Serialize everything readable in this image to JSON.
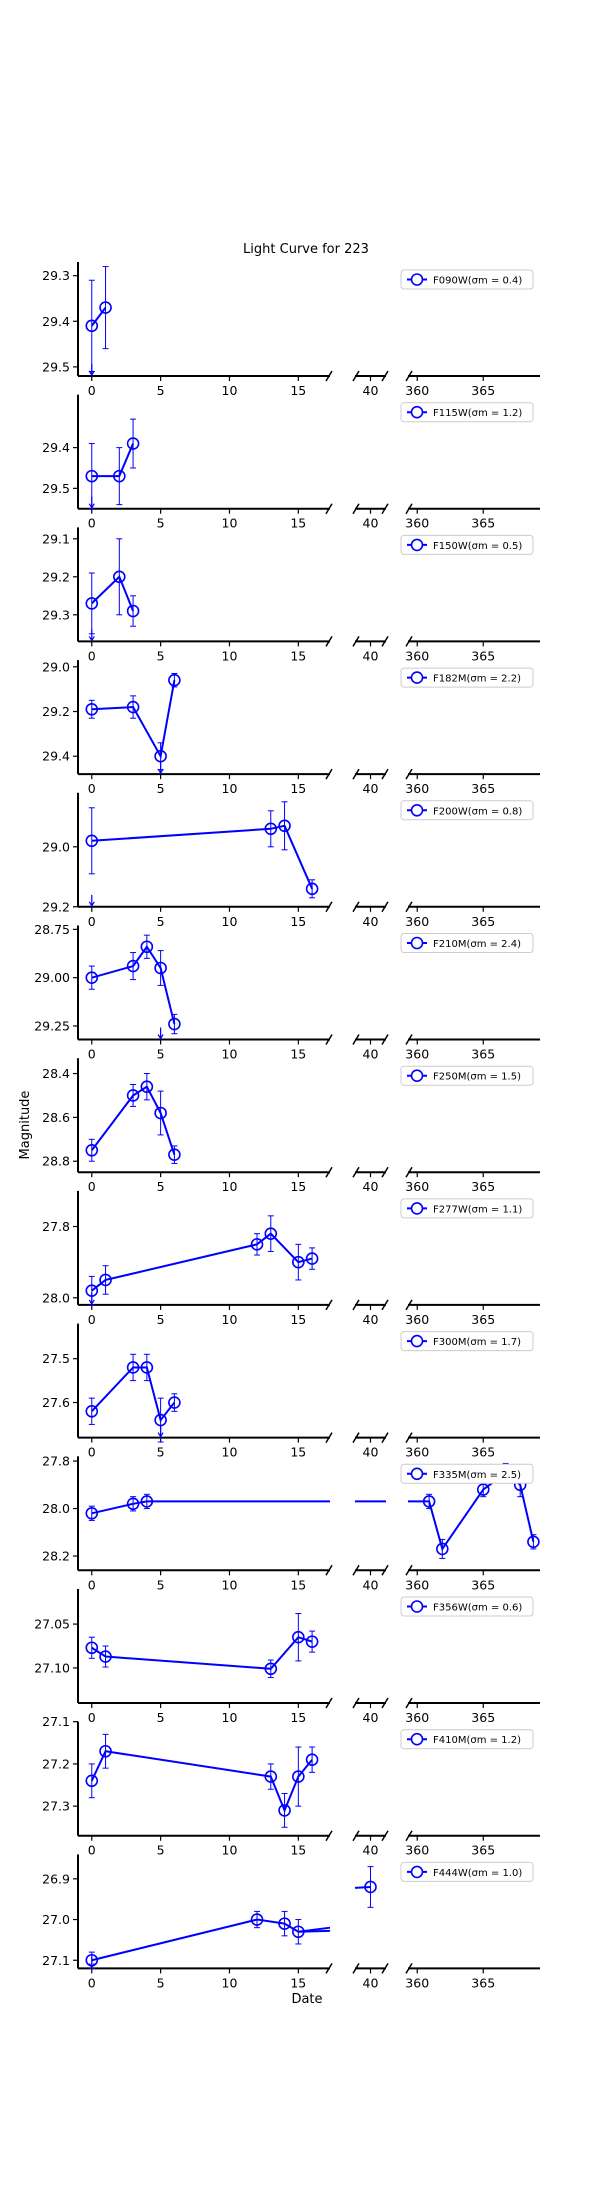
{
  "title": "Light Curve for 223",
  "xlabel": "Date",
  "ylabel": "Magnitude",
  "series_color": "#0000ff",
  "x_segments": [
    {
      "xlim": [
        -1,
        17.3
      ],
      "ticks": [
        0,
        5,
        10,
        15
      ]
    },
    {
      "xlim": [
        39.3,
        40.7
      ],
      "ticks": [
        40
      ]
    },
    {
      "xlim": [
        359.3,
        369.3
      ],
      "ticks": [
        360,
        365
      ]
    }
  ],
  "chart_data": [
    {
      "type": "line",
      "filter": "F090W",
      "legend": "F090W(σm = 0.4)",
      "ylim": [
        29.52,
        29.27
      ],
      "yticks": [
        "29.3",
        "29.4",
        "29.5"
      ],
      "yvals": [
        29.3,
        29.4,
        29.5
      ],
      "points": [
        {
          "x": 0,
          "y": 29.41,
          "err": 0.1
        },
        {
          "x": 1,
          "y": 29.37,
          "err": 0.09
        }
      ],
      "upper_limit_x": [
        0
      ]
    },
    {
      "type": "line",
      "filter": "F115W",
      "legend": "F115W(σm = 1.2)",
      "ylim": [
        29.55,
        29.27
      ],
      "yticks": [
        "29.4",
        "29.5"
      ],
      "yvals": [
        29.4,
        29.5
      ],
      "points": [
        {
          "x": 0,
          "y": 29.47,
          "err": 0.08
        },
        {
          "x": 2,
          "y": 29.47,
          "err": 0.07
        },
        {
          "x": 3,
          "y": 29.39,
          "err": 0.06
        }
      ],
      "upper_limit_x": [
        0
      ]
    },
    {
      "type": "line",
      "filter": "F150W",
      "legend": "F150W(σm = 0.5)",
      "ylim": [
        29.37,
        29.07
      ],
      "yticks": [
        "29.1",
        "29.2",
        "29.3"
      ],
      "yvals": [
        29.1,
        29.2,
        29.3
      ],
      "points": [
        {
          "x": 0,
          "y": 29.27,
          "err": 0.08
        },
        {
          "x": 2,
          "y": 29.2,
          "err": 0.1
        },
        {
          "x": 3,
          "y": 29.29,
          "err": 0.04
        }
      ],
      "upper_limit_x": [
        0
      ]
    },
    {
      "type": "line",
      "filter": "F182M",
      "legend": "F182M(σm = 2.2)",
      "ylim": [
        29.48,
        28.97
      ],
      "yticks": [
        "29.0",
        "29.2",
        "29.4"
      ],
      "yvals": [
        29.0,
        29.2,
        29.4
      ],
      "points": [
        {
          "x": 0,
          "y": 29.19,
          "err": 0.04
        },
        {
          "x": 3,
          "y": 29.18,
          "err": 0.05
        },
        {
          "x": 5,
          "y": 29.4,
          "err": 0.06
        },
        {
          "x": 6,
          "y": 29.06,
          "err": 0.03
        }
      ],
      "upper_limit_x": [
        5
      ]
    },
    {
      "type": "line",
      "filter": "F200W",
      "legend": "F200W(σm = 0.8)",
      "ylim": [
        29.2,
        28.82
      ],
      "yticks": [
        "29.0",
        "29.2"
      ],
      "yvals": [
        29.0,
        29.2
      ],
      "points": [
        {
          "x": 0,
          "y": 28.98,
          "err": 0.11
        },
        {
          "x": 13,
          "y": 28.94,
          "err": 0.06
        },
        {
          "x": 14,
          "y": 28.93,
          "err": 0.08
        },
        {
          "x": 16,
          "y": 29.14,
          "err": 0.03
        }
      ],
      "upper_limit_x": [
        0
      ]
    },
    {
      "type": "line",
      "filter": "F210M",
      "legend": "F210M(σm = 2.4)",
      "ylim": [
        29.32,
        28.73
      ],
      "yticks": [
        "28.75",
        "29.00",
        "29.25"
      ],
      "yvals": [
        28.75,
        29.0,
        29.25
      ],
      "points": [
        {
          "x": 0,
          "y": 29.0,
          "err": 0.06
        },
        {
          "x": 3,
          "y": 28.94,
          "err": 0.07
        },
        {
          "x": 4,
          "y": 28.84,
          "err": 0.06
        },
        {
          "x": 5,
          "y": 28.95,
          "err": 0.09
        },
        {
          "x": 6,
          "y": 29.24,
          "err": 0.05
        }
      ],
      "upper_limit_x": [
        5
      ]
    },
    {
      "type": "line",
      "filter": "F250M",
      "legend": "F250M(σm = 1.5)",
      "ylim": [
        28.85,
        28.33
      ],
      "yticks": [
        "28.4",
        "28.6",
        "28.8"
      ],
      "yvals": [
        28.4,
        28.6,
        28.8
      ],
      "points": [
        {
          "x": 0,
          "y": 28.75,
          "err": 0.05
        },
        {
          "x": 3,
          "y": 28.5,
          "err": 0.05
        },
        {
          "x": 4,
          "y": 28.46,
          "err": 0.06
        },
        {
          "x": 5,
          "y": 28.58,
          "err": 0.1
        },
        {
          "x": 6,
          "y": 28.77,
          "err": 0.04
        }
      ],
      "upper_limit_x": []
    },
    {
      "type": "line",
      "filter": "F277W",
      "legend": "F277W(σm = 1.1)",
      "ylim": [
        28.02,
        27.7
      ],
      "yticks": [
        "27.8",
        "28.0"
      ],
      "yvals": [
        27.8,
        28.0
      ],
      "points": [
        {
          "x": 0,
          "y": 27.98,
          "err": 0.04
        },
        {
          "x": 1,
          "y": 27.95,
          "err": 0.04
        },
        {
          "x": 12,
          "y": 27.85,
          "err": 0.03
        },
        {
          "x": 13,
          "y": 27.82,
          "err": 0.05
        },
        {
          "x": 15,
          "y": 27.9,
          "err": 0.05
        },
        {
          "x": 16,
          "y": 27.89,
          "err": 0.03
        }
      ],
      "upper_limit_x": [
        0
      ]
    },
    {
      "type": "line",
      "filter": "F300M",
      "legend": "F300M(σm = 1.7)",
      "ylim": [
        27.68,
        27.42
      ],
      "yticks": [
        "27.5",
        "27.6"
      ],
      "yvals": [
        27.5,
        27.6
      ],
      "points": [
        {
          "x": 0,
          "y": 27.62,
          "err": 0.03
        },
        {
          "x": 3,
          "y": 27.52,
          "err": 0.03
        },
        {
          "x": 4,
          "y": 27.52,
          "err": 0.03
        },
        {
          "x": 5,
          "y": 27.64,
          "err": 0.05
        },
        {
          "x": 6,
          "y": 27.6,
          "err": 0.02
        }
      ],
      "upper_limit_x": [
        5
      ]
    },
    {
      "type": "line",
      "filter": "F335M",
      "legend": "F335M(σm = 2.5)",
      "ylim": [
        28.26,
        27.78
      ],
      "yticks": [
        "27.8",
        "28.0",
        "28.2"
      ],
      "yvals": [
        27.8,
        28.0,
        28.2
      ],
      "points": [
        {
          "x": 0,
          "y": 28.02,
          "err": 0.03
        },
        {
          "x": 3,
          "y": 27.98,
          "err": 0.03
        },
        {
          "x": 4,
          "y": 27.97,
          "err": 0.03
        },
        {
          "x": 360.9,
          "y": 27.97,
          "err": 0.03
        },
        {
          "x": 361.9,
          "y": 28.17,
          "err": 0.04
        },
        {
          "x": 365,
          "y": 27.92,
          "err": 0.03
        },
        {
          "x": 366.7,
          "y": 27.85,
          "err": 0.04
        },
        {
          "x": 367.8,
          "y": 27.9,
          "err": 0.05
        },
        {
          "x": 368.8,
          "y": 28.14,
          "err": 0.03
        }
      ],
      "upper_limit_x": []
    },
    {
      "type": "line",
      "filter": "F356W",
      "legend": "F356W(σm = 0.6)",
      "ylim": [
        27.14,
        27.01
      ],
      "yticks": [
        "27.05",
        "27.10"
      ],
      "yvals": [
        27.05,
        27.1
      ],
      "points": [
        {
          "x": 0,
          "y": 27.077,
          "err": 0.012
        },
        {
          "x": 1,
          "y": 27.087,
          "err": 0.012
        },
        {
          "x": 13,
          "y": 27.101,
          "err": 0.01
        },
        {
          "x": 15,
          "y": 27.065,
          "err": 0.027
        },
        {
          "x": 16,
          "y": 27.07,
          "err": 0.012
        }
      ],
      "upper_limit_x": []
    },
    {
      "type": "line",
      "filter": "F410M",
      "legend": "F410M(σm = 1.2)",
      "ylim": [
        27.37,
        27.1
      ],
      "yticks": [
        "27.1",
        "27.2",
        "27.3"
      ],
      "yvals": [
        27.1,
        27.2,
        27.3
      ],
      "points": [
        {
          "x": 0,
          "y": 27.24,
          "err": 0.04
        },
        {
          "x": 1,
          "y": 27.17,
          "err": 0.04
        },
        {
          "x": 13,
          "y": 27.23,
          "err": 0.03
        },
        {
          "x": 14,
          "y": 27.31,
          "err": 0.04
        },
        {
          "x": 15,
          "y": 27.23,
          "err": 0.07
        },
        {
          "x": 16,
          "y": 27.19,
          "err": 0.03
        }
      ],
      "upper_limit_x": []
    },
    {
      "type": "line",
      "filter": "F444W",
      "legend": "F444W(σm = 1.0)",
      "ylim": [
        27.12,
        26.84
      ],
      "yticks": [
        "26.9",
        "27.0",
        "27.1"
      ],
      "yvals": [
        26.9,
        27.0,
        27.1
      ],
      "points": [
        {
          "x": 0,
          "y": 27.1,
          "err": 0.02
        },
        {
          "x": 12,
          "y": 27.0,
          "err": 0.02
        },
        {
          "x": 14,
          "y": 27.01,
          "err": 0.03
        },
        {
          "x": 15,
          "y": 27.03,
          "err": 0.03
        },
        {
          "x": 40,
          "y": 26.92,
          "err": 0.05
        }
      ],
      "upper_limit_x": [
        0
      ],
      "trend_to_x": 17.3,
      "trend_to_y": 27.02
    }
  ]
}
